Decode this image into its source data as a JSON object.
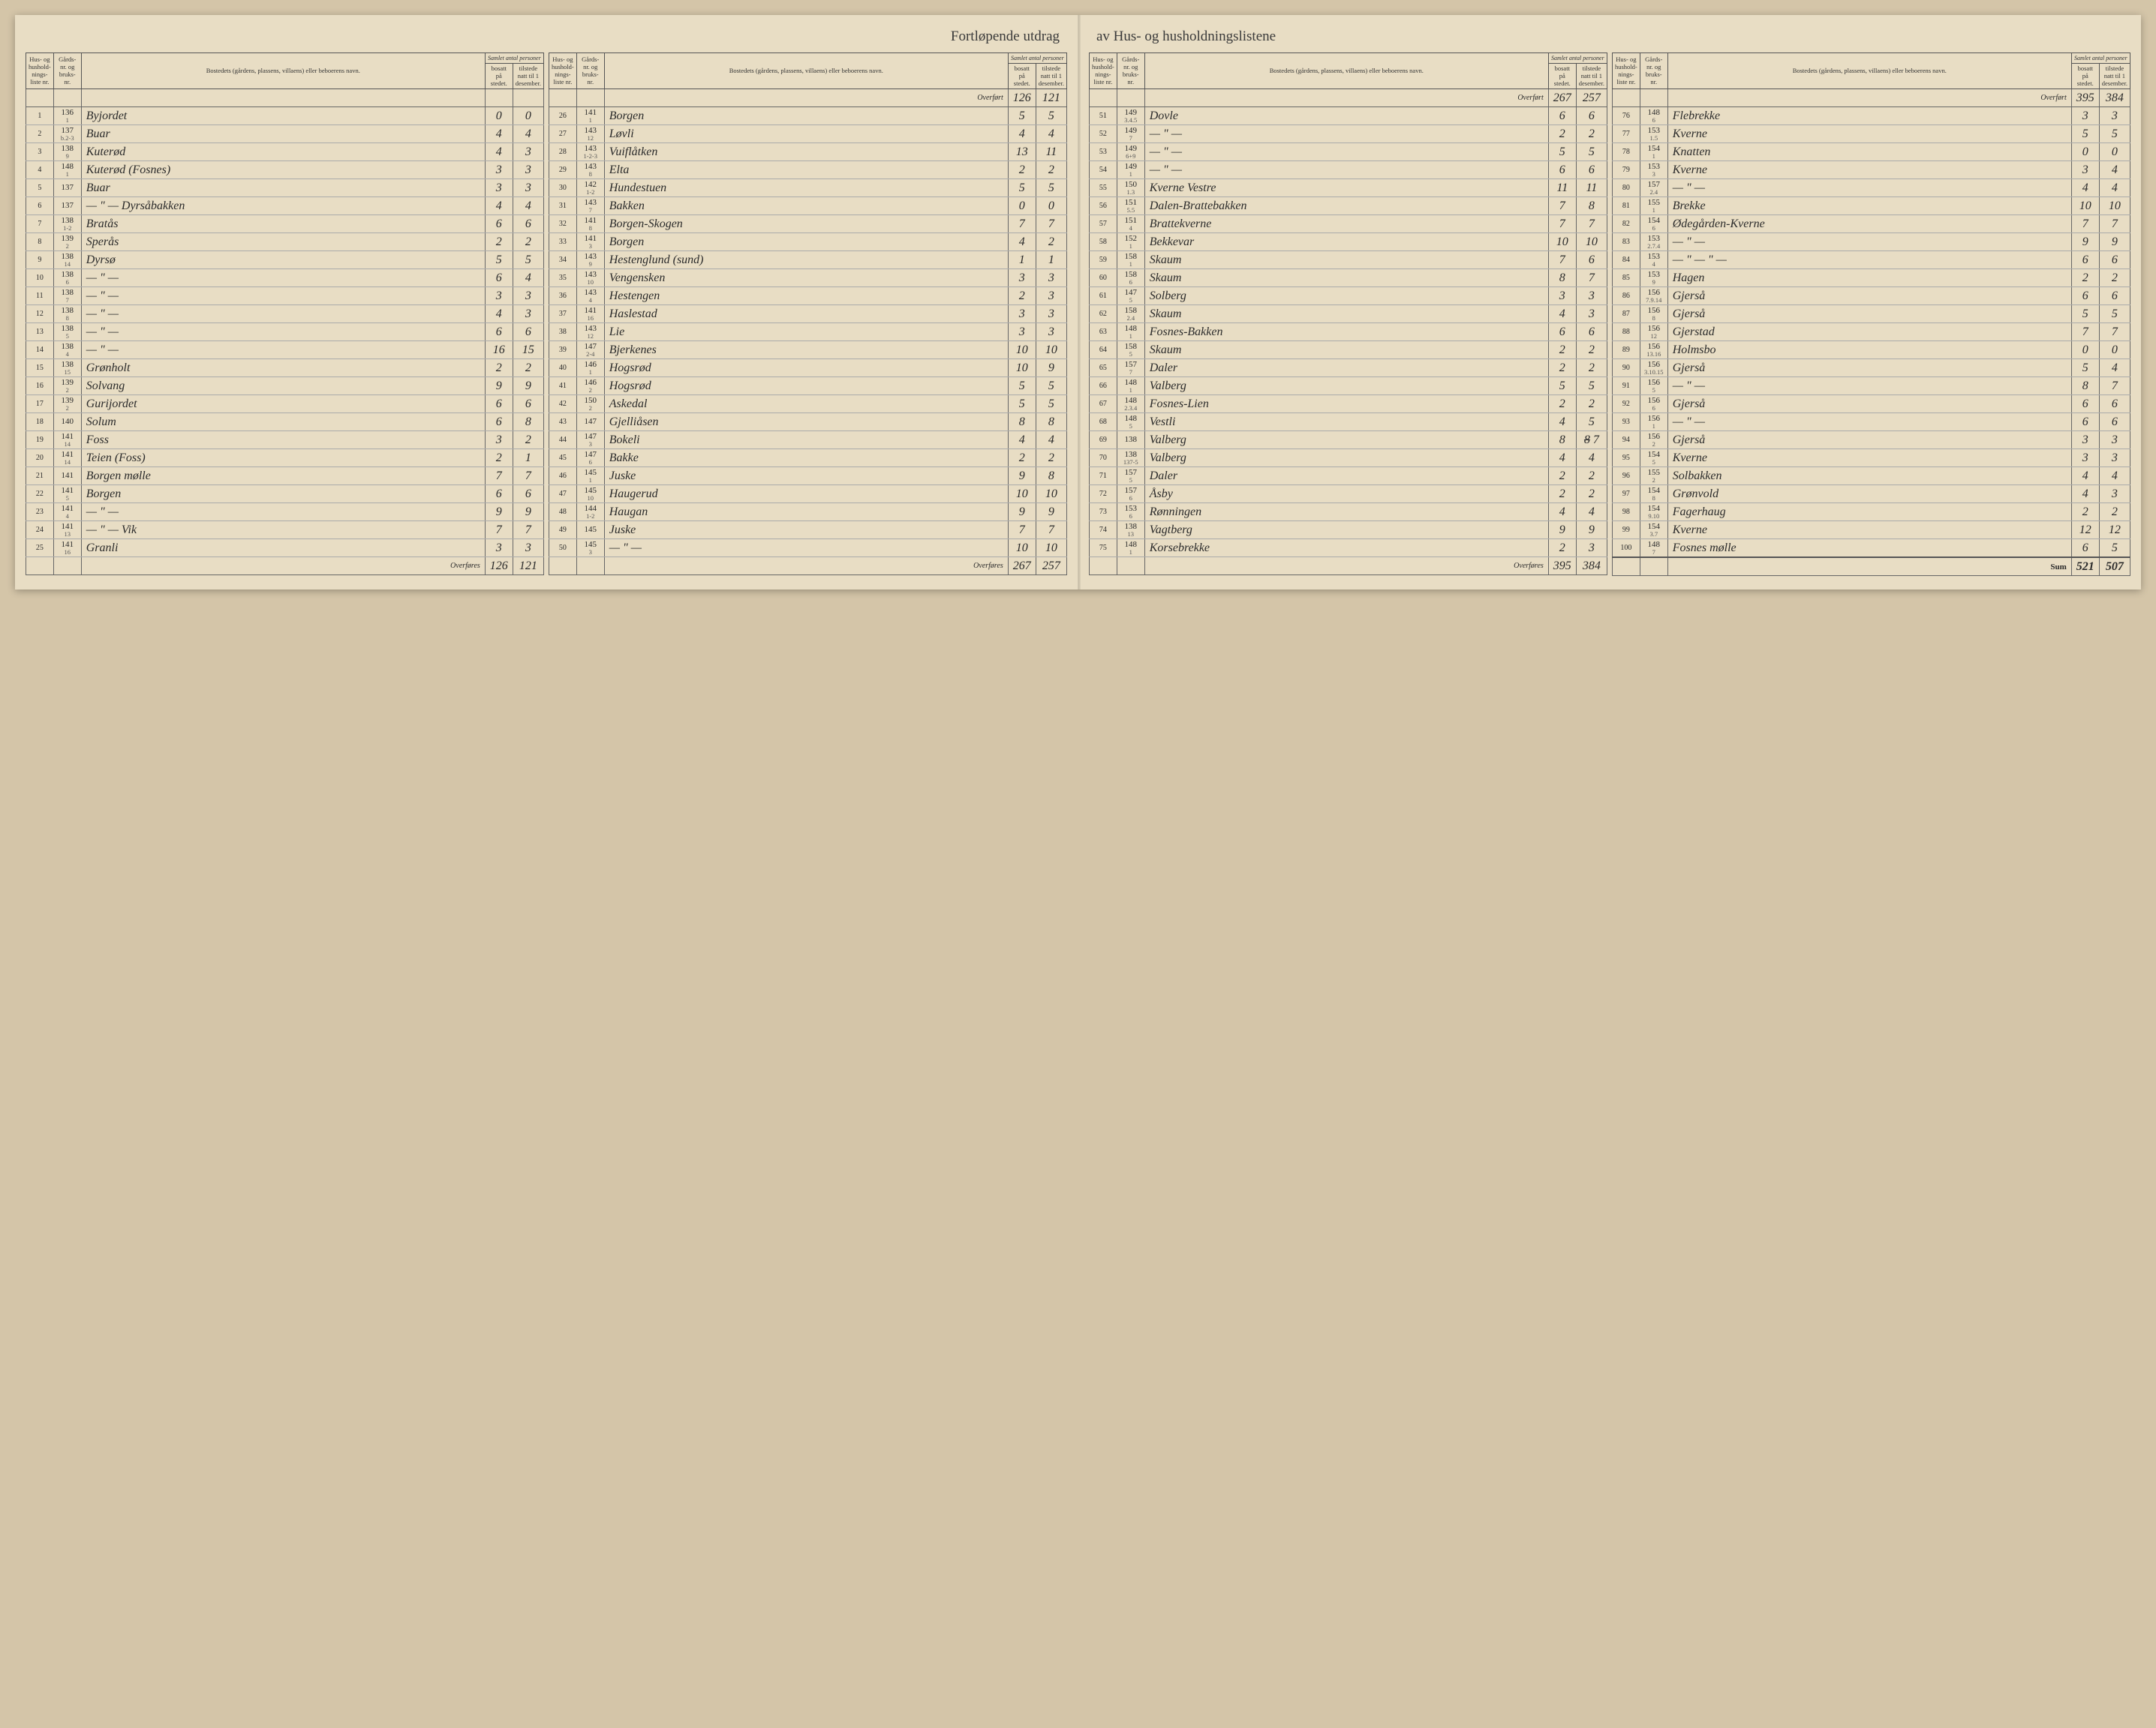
{
  "title_left": "Fortløpende utdrag",
  "title_right": "av Hus- og husholdningslistene",
  "header": {
    "liste": "Hus- og hushold-nings-liste nr.",
    "gard": "Gårds-nr. og bruks-nr.",
    "bosted": "Bostedets (gårdens, plassens, villaens) eller beboerens navn.",
    "samlet": "Samlet antal personer",
    "bosatt": "bosatt på stedet.",
    "tilstede": "tilstede natt til 1 desember."
  },
  "overfort": "Overført",
  "overfores": "Overføres",
  "sum": "Sum",
  "sections": [
    {
      "carry_in": [
        "",
        ""
      ],
      "rows": [
        {
          "n": "1",
          "g": "136",
          "b": "1",
          "name": "Byjordet",
          "c1": "0",
          "c2": "0"
        },
        {
          "n": "2",
          "g": "137",
          "b": "b.2-3",
          "name": "Buar",
          "c1": "4",
          "c2": "4"
        },
        {
          "n": "3",
          "g": "138",
          "b": "9",
          "name": "Kuterød",
          "c1": "4",
          "c2": "3"
        },
        {
          "n": "4",
          "g": "148",
          "b": "1",
          "name": "Kuterød (Fosnes)",
          "c1": "3",
          "c2": "3"
        },
        {
          "n": "5",
          "g": "137",
          "b": "",
          "name": "Buar",
          "c1": "3",
          "c2": "3"
        },
        {
          "n": "6",
          "g": "137",
          "b": "",
          "name": "— \" — Dyrsåbakken",
          "c1": "4",
          "c2": "4"
        },
        {
          "n": "7",
          "g": "138",
          "b": "1-2",
          "name": "Bratås",
          "c1": "6",
          "c2": "6"
        },
        {
          "n": "8",
          "g": "139",
          "b": "2",
          "name": "Sperås",
          "c1": "2",
          "c2": "2"
        },
        {
          "n": "9",
          "g": "138",
          "b": "14",
          "name": "Dyrsø",
          "c1": "5",
          "c2": "5"
        },
        {
          "n": "10",
          "g": "138",
          "b": "6",
          "name": "— \" —",
          "c1": "6",
          "c2": "4"
        },
        {
          "n": "11",
          "g": "138",
          "b": "7",
          "name": "— \" —",
          "c1": "3",
          "c2": "3"
        },
        {
          "n": "12",
          "g": "138",
          "b": "8",
          "name": "— \" —",
          "c1": "4",
          "c2": "3"
        },
        {
          "n": "13",
          "g": "138",
          "b": "5",
          "name": "— \" —",
          "c1": "6",
          "c2": "6"
        },
        {
          "n": "14",
          "g": "138",
          "b": "4",
          "name": "— \" —",
          "c1": "16",
          "c2": "15"
        },
        {
          "n": "15",
          "g": "138",
          "b": "15",
          "name": "Grønholt",
          "c1": "2",
          "c2": "2"
        },
        {
          "n": "16",
          "g": "139",
          "b": "2",
          "name": "Solvang",
          "c1": "9",
          "c2": "9"
        },
        {
          "n": "17",
          "g": "139",
          "b": "2",
          "name": "Gurijordet",
          "c1": "6",
          "c2": "6"
        },
        {
          "n": "18",
          "g": "140",
          "b": "",
          "name": "Solum",
          "c1": "6",
          "c2": "8"
        },
        {
          "n": "19",
          "g": "141",
          "b": "14",
          "name": "Foss",
          "c1": "3",
          "c2": "2"
        },
        {
          "n": "20",
          "g": "141",
          "b": "14",
          "name": "Teien (Foss)",
          "c1": "2",
          "c2": "1"
        },
        {
          "n": "21",
          "g": "141",
          "b": "",
          "name": "Borgen mølle",
          "c1": "7",
          "c2": "7"
        },
        {
          "n": "22",
          "g": "141",
          "b": "5",
          "name": "Borgen",
          "c1": "6",
          "c2": "6"
        },
        {
          "n": "23",
          "g": "141",
          "b": "4",
          "name": "— \" —",
          "c1": "9",
          "c2": "9"
        },
        {
          "n": "24",
          "g": "141",
          "b": "13",
          "name": "— \" — Vik",
          "c1": "7",
          "c2": "7"
        },
        {
          "n": "25",
          "g": "141",
          "b": "16",
          "name": "Granli",
          "c1": "3",
          "c2": "3"
        }
      ],
      "carry_out": [
        "126",
        "121"
      ]
    },
    {
      "carry_in": [
        "126",
        "121"
      ],
      "rows": [
        {
          "n": "26",
          "g": "141",
          "b": "1",
          "name": "Borgen",
          "c1": "5",
          "c2": "5"
        },
        {
          "n": "27",
          "g": "143",
          "b": "12",
          "name": "Løvli",
          "c1": "4",
          "c2": "4"
        },
        {
          "n": "28",
          "g": "143",
          "b": "1-2-3",
          "name": "Vuiflåtken",
          "c1": "13",
          "c2": "11"
        },
        {
          "n": "29",
          "g": "143",
          "b": "8",
          "name": "Elta",
          "c1": "2",
          "c2": "2"
        },
        {
          "n": "30",
          "g": "142",
          "b": "1-2",
          "name": "Hundestuen",
          "c1": "5",
          "c2": "5"
        },
        {
          "n": "31",
          "g": "143",
          "b": "7",
          "name": "Bakken",
          "c1": "0",
          "c2": "0"
        },
        {
          "n": "32",
          "g": "141",
          "b": "8",
          "name": "Borgen-Skogen",
          "c1": "7",
          "c2": "7"
        },
        {
          "n": "33",
          "g": "141",
          "b": "3",
          "name": "Borgen",
          "c1": "4",
          "c2": "2"
        },
        {
          "n": "34",
          "g": "143",
          "b": "9",
          "name": "Hestenglund (sund)",
          "c1": "1",
          "c2": "1"
        },
        {
          "n": "35",
          "g": "143",
          "b": "10",
          "name": "Vengensken",
          "c1": "3",
          "c2": "3"
        },
        {
          "n": "36",
          "g": "143",
          "b": "4",
          "name": "Hestengen",
          "c1": "2",
          "c2": "3"
        },
        {
          "n": "37",
          "g": "141",
          "b": "16",
          "name": "Haslestad",
          "c1": "3",
          "c2": "3"
        },
        {
          "n": "38",
          "g": "143",
          "b": "12",
          "name": "Lie",
          "c1": "3",
          "c2": "3"
        },
        {
          "n": "39",
          "g": "147",
          "b": "2-4",
          "name": "Bjerkenes",
          "c1": "10",
          "c2": "10"
        },
        {
          "n": "40",
          "g": "146",
          "b": "1",
          "name": "Hogsrød",
          "c1": "10",
          "c2": "9"
        },
        {
          "n": "41",
          "g": "146",
          "b": "2",
          "name": "Hogsrød",
          "c1": "5",
          "c2": "5"
        },
        {
          "n": "42",
          "g": "150",
          "b": "2",
          "name": "Askedal",
          "c1": "5",
          "c2": "5"
        },
        {
          "n": "43",
          "g": "147",
          "b": "",
          "name": "Gjelliåsen",
          "c1": "8",
          "c2": "8"
        },
        {
          "n": "44",
          "g": "147",
          "b": "3",
          "name": "Bokeli",
          "c1": "4",
          "c2": "4"
        },
        {
          "n": "45",
          "g": "147",
          "b": "6",
          "name": "Bakke",
          "c1": "2",
          "c2": "2"
        },
        {
          "n": "46",
          "g": "145",
          "b": "1",
          "name": "Juske",
          "c1": "9",
          "c2": "8"
        },
        {
          "n": "47",
          "g": "145",
          "b": "10",
          "name": "Haugerud",
          "c1": "10",
          "c2": "10"
        },
        {
          "n": "48",
          "g": "144",
          "b": "1-2",
          "name": "Haugan",
          "c1": "9",
          "c2": "9"
        },
        {
          "n": "49",
          "g": "145",
          "b": "",
          "name": "Juske",
          "c1": "7",
          "c2": "7"
        },
        {
          "n": "50",
          "g": "145",
          "b": "3",
          "name": "— \" —",
          "c1": "10",
          "c2": "10"
        }
      ],
      "carry_out": [
        "267",
        "257"
      ]
    },
    {
      "carry_in": [
        "267",
        "257"
      ],
      "rows": [
        {
          "n": "51",
          "g": "149",
          "b": "3.4.5",
          "name": "Dovle",
          "c1": "6",
          "c2": "6"
        },
        {
          "n": "52",
          "g": "149",
          "b": "7",
          "name": "— \" —",
          "c1": "2",
          "c2": "2"
        },
        {
          "n": "53",
          "g": "149",
          "b": "6+9",
          "name": "— \" —",
          "c1": "5",
          "c2": "5"
        },
        {
          "n": "54",
          "g": "149",
          "b": "1",
          "name": "— \" —",
          "c1": "6",
          "c2": "6"
        },
        {
          "n": "55",
          "g": "150",
          "b": "1.3",
          "name": "Kverne Vestre",
          "c1": "11",
          "c2": "11"
        },
        {
          "n": "56",
          "g": "151",
          "b": "5.5",
          "name": "Dalen-Brattebakken",
          "c1": "7",
          "c2": "8"
        },
        {
          "n": "57",
          "g": "151",
          "b": "4",
          "name": "Brattekverne",
          "c1": "7",
          "c2": "7"
        },
        {
          "n": "58",
          "g": "152",
          "b": "1",
          "name": "Bekkevar",
          "c1": "10",
          "c2": "10"
        },
        {
          "n": "59",
          "g": "158",
          "b": "1",
          "name": "Skaum",
          "c1": "7",
          "c2": "6"
        },
        {
          "n": "60",
          "g": "158",
          "b": "6",
          "name": "Skaum",
          "c1": "8",
          "c2": "7"
        },
        {
          "n": "61",
          "g": "147",
          "b": "5",
          "name": "Solberg",
          "c1": "3",
          "c2": "3"
        },
        {
          "n": "62",
          "g": "158",
          "b": "2.4",
          "name": "Skaum",
          "c1": "4",
          "c2": "3"
        },
        {
          "n": "63",
          "g": "148",
          "b": "1",
          "name": "Fosnes-Bakken",
          "c1": "6",
          "c2": "6"
        },
        {
          "n": "64",
          "g": "158",
          "b": "5",
          "name": "Skaum",
          "c1": "2",
          "c2": "2"
        },
        {
          "n": "65",
          "g": "157",
          "b": "7",
          "name": "Daler",
          "c1": "2",
          "c2": "2"
        },
        {
          "n": "66",
          "g": "148",
          "b": "1",
          "name": "Valberg",
          "c1": "5",
          "c2": "5"
        },
        {
          "n": "67",
          "g": "148",
          "b": "2.3.4",
          "name": "Fosnes-Lien",
          "c1": "2",
          "c2": "2"
        },
        {
          "n": "68",
          "g": "148",
          "b": "5",
          "name": "Vestli",
          "c1": "4",
          "c2": "5"
        },
        {
          "n": "69",
          "g": "138",
          "b": "",
          "name": "Valberg",
          "c1": "8",
          "c2": "7",
          "c2strike": "8"
        },
        {
          "n": "70",
          "g": "138",
          "b": "137-5",
          "name": "Valberg",
          "c1": "4",
          "c2": "4"
        },
        {
          "n": "71",
          "g": "157",
          "b": "5",
          "name": "Daler",
          "c1": "2",
          "c2": "2"
        },
        {
          "n": "72",
          "g": "157",
          "b": "6",
          "name": "Åsby",
          "c1": "2",
          "c2": "2"
        },
        {
          "n": "73",
          "g": "153",
          "b": "6",
          "name": "Rønningen",
          "c1": "4",
          "c2": "4"
        },
        {
          "n": "74",
          "g": "138",
          "b": "13",
          "name": "Vagtberg",
          "c1": "9",
          "c2": "9"
        },
        {
          "n": "75",
          "g": "148",
          "b": "1",
          "name": "Korsebrekke",
          "c1": "2",
          "c2": "3"
        }
      ],
      "carry_out": [
        "395",
        "384"
      ]
    },
    {
      "carry_in": [
        "395",
        "384"
      ],
      "rows": [
        {
          "n": "76",
          "g": "148",
          "b": "6",
          "name": "Flebrekke",
          "c1": "3",
          "c2": "3"
        },
        {
          "n": "77",
          "g": "153",
          "b": "1.5",
          "name": "Kverne",
          "c1": "5",
          "c2": "5"
        },
        {
          "n": "78",
          "g": "154",
          "b": "1",
          "name": "Knatten",
          "c1": "0",
          "c2": "0"
        },
        {
          "n": "79",
          "g": "153",
          "b": "3",
          "name": "Kverne",
          "c1": "3",
          "c2": "4"
        },
        {
          "n": "80",
          "g": "157",
          "b": "2.4",
          "name": "— \" —",
          "c1": "4",
          "c2": "4"
        },
        {
          "n": "81",
          "g": "155",
          "b": "1",
          "name": "Brekke",
          "c1": "10",
          "c2": "10"
        },
        {
          "n": "82",
          "g": "154",
          "b": "6",
          "name": "Ødegården-Kverne",
          "c1": "7",
          "c2": "7"
        },
        {
          "n": "83",
          "g": "153",
          "b": "2.7.4",
          "name": "— \" —",
          "c1": "9",
          "c2": "9"
        },
        {
          "n": "84",
          "g": "153",
          "b": "4",
          "name": "— \" — \" —",
          "c1": "6",
          "c2": "6"
        },
        {
          "n": "85",
          "g": "153",
          "b": "9",
          "name": "Hagen",
          "c1": "2",
          "c2": "2"
        },
        {
          "n": "86",
          "g": "156",
          "b": "7.9.14",
          "name": "Gjerså",
          "c1": "6",
          "c2": "6"
        },
        {
          "n": "87",
          "g": "156",
          "b": "8",
          "name": "Gjerså",
          "c1": "5",
          "c2": "5"
        },
        {
          "n": "88",
          "g": "156",
          "b": "12",
          "name": "Gjerstad",
          "c1": "7",
          "c2": "7"
        },
        {
          "n": "89",
          "g": "156",
          "b": "13.16",
          "name": "Holmsbo",
          "c1": "0",
          "c2": "0"
        },
        {
          "n": "90",
          "g": "156",
          "b": "3.10.15",
          "name": "Gjerså",
          "c1": "5",
          "c2": "4"
        },
        {
          "n": "91",
          "g": "156",
          "b": "5",
          "name": "— \" —",
          "c1": "8",
          "c2": "7"
        },
        {
          "n": "92",
          "g": "156",
          "b": "6",
          "name": "Gjerså",
          "c1": "6",
          "c2": "6"
        },
        {
          "n": "93",
          "g": "156",
          "b": "1",
          "name": "— \" —",
          "c1": "6",
          "c2": "6"
        },
        {
          "n": "94",
          "g": "156",
          "b": "2",
          "name": "Gjerså",
          "c1": "3",
          "c2": "3"
        },
        {
          "n": "95",
          "g": "154",
          "b": "5",
          "name": "Kverne",
          "c1": "3",
          "c2": "3"
        },
        {
          "n": "96",
          "g": "155",
          "b": "2",
          "name": "Solbakken",
          "c1": "4",
          "c2": "4"
        },
        {
          "n": "97",
          "g": "154",
          "b": "8",
          "name": "Grønvold",
          "c1": "4",
          "c2": "3"
        },
        {
          "n": "98",
          "g": "154",
          "b": "9.10",
          "name": "Fagerhaug",
          "c1": "2",
          "c2": "2"
        },
        {
          "n": "99",
          "g": "154",
          "b": "3.7",
          "name": "Kverne",
          "c1": "12",
          "c2": "12"
        },
        {
          "n": "100",
          "g": "148",
          "b": "7",
          "name": "Fosnes mølle",
          "c1": "6",
          "c2": "5"
        }
      ],
      "carry_out": [
        "521",
        "507"
      ],
      "is_sum": true
    }
  ]
}
